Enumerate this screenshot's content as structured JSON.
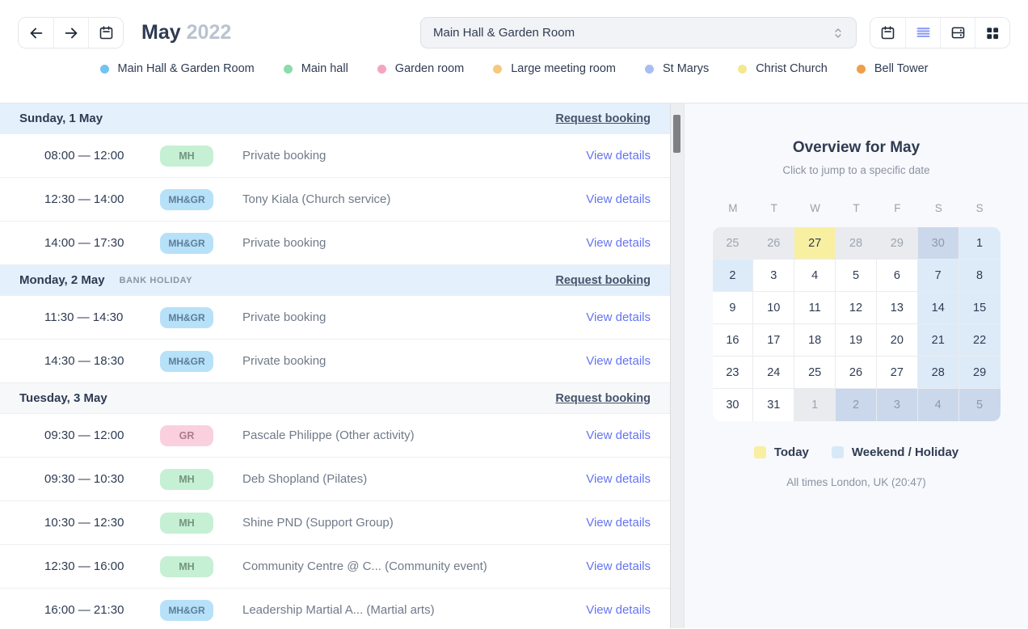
{
  "header": {
    "title_month": "May",
    "title_year": "2022",
    "room_select": {
      "value": "Main Hall & Garden Room"
    }
  },
  "legend": {
    "items": [
      {
        "label": "Main Hall & Garden Room",
        "color": "#73C3F0"
      },
      {
        "label": "Main hall",
        "color": "#8CDCA9"
      },
      {
        "label": "Garden room",
        "color": "#F4A6BF"
      },
      {
        "label": "Large meeting room",
        "color": "#F4CB7C"
      },
      {
        "label": "St Marys",
        "color": "#A9BDF2"
      },
      {
        "label": "Christ Church",
        "color": "#F4E88F"
      },
      {
        "label": "Bell Tower",
        "color": "#EF9F4B"
      }
    ]
  },
  "schedule": {
    "request_booking_label": "Request booking",
    "view_details_label": "View details",
    "days": [
      {
        "label": "Sunday, 1 May",
        "note": "",
        "holiday": true,
        "events": [
          {
            "time": "08:00 — 12:00",
            "badge": "MH",
            "badge_type": "mh",
            "title": "Private booking"
          },
          {
            "time": "12:30 — 14:00",
            "badge": "MH&GR",
            "badge_type": "mhgr",
            "title": "Tony Kiala (Church service)"
          },
          {
            "time": "14:00 — 17:30",
            "badge": "MH&GR",
            "badge_type": "mhgr",
            "title": "Private booking"
          }
        ]
      },
      {
        "label": "Monday, 2 May",
        "note": "BANK HOLIDAY",
        "holiday": true,
        "events": [
          {
            "time": "11:30 — 14:30",
            "badge": "MH&GR",
            "badge_type": "mhgr",
            "title": "Private booking"
          },
          {
            "time": "14:30 — 18:30",
            "badge": "MH&GR",
            "badge_type": "mhgr",
            "title": "Private booking"
          }
        ]
      },
      {
        "label": "Tuesday, 3 May",
        "note": "",
        "holiday": false,
        "events": [
          {
            "time": "09:30 — 12:00",
            "badge": "GR",
            "badge_type": "gr",
            "title": "Pascale Philippe (Other activity)"
          },
          {
            "time": "09:30 — 10:30",
            "badge": "MH",
            "badge_type": "mh",
            "title": "Deb Shopland (Pilates)"
          },
          {
            "time": "10:30 — 12:30",
            "badge": "MH",
            "badge_type": "mh",
            "title": "Shine PND (Support Group)"
          },
          {
            "time": "12:30 — 16:00",
            "badge": "MH",
            "badge_type": "mh",
            "title": "Community Centre @ C... (Community event)"
          },
          {
            "time": "16:00 — 21:30",
            "badge": "MH&GR",
            "badge_type": "mhgr",
            "title": "Leadership Martial A... (Martial arts)"
          }
        ]
      }
    ]
  },
  "overview": {
    "title": "Overview for May",
    "subtitle": "Click to jump to a specific date",
    "weekday_headers": [
      "M",
      "T",
      "W",
      "T",
      "F",
      "S",
      "S"
    ],
    "weeks": [
      [
        {
          "d": "25",
          "t": "out"
        },
        {
          "d": "26",
          "t": "out"
        },
        {
          "d": "27",
          "t": "today"
        },
        {
          "d": "28",
          "t": "out"
        },
        {
          "d": "29",
          "t": "out"
        },
        {
          "d": "30",
          "t": "out-we"
        },
        {
          "d": "1",
          "t": "we"
        }
      ],
      [
        {
          "d": "2",
          "t": "we"
        },
        {
          "d": "3",
          "t": ""
        },
        {
          "d": "4",
          "t": ""
        },
        {
          "d": "5",
          "t": ""
        },
        {
          "d": "6",
          "t": ""
        },
        {
          "d": "7",
          "t": "we"
        },
        {
          "d": "8",
          "t": "we"
        }
      ],
      [
        {
          "d": "9",
          "t": ""
        },
        {
          "d": "10",
          "t": ""
        },
        {
          "d": "11",
          "t": ""
        },
        {
          "d": "12",
          "t": ""
        },
        {
          "d": "13",
          "t": ""
        },
        {
          "d": "14",
          "t": "we"
        },
        {
          "d": "15",
          "t": "we"
        }
      ],
      [
        {
          "d": "16",
          "t": ""
        },
        {
          "d": "17",
          "t": ""
        },
        {
          "d": "18",
          "t": ""
        },
        {
          "d": "19",
          "t": ""
        },
        {
          "d": "20",
          "t": ""
        },
        {
          "d": "21",
          "t": "we"
        },
        {
          "d": "22",
          "t": "we"
        }
      ],
      [
        {
          "d": "23",
          "t": ""
        },
        {
          "d": "24",
          "t": ""
        },
        {
          "d": "25",
          "t": ""
        },
        {
          "d": "26",
          "t": ""
        },
        {
          "d": "27",
          "t": ""
        },
        {
          "d": "28",
          "t": "we"
        },
        {
          "d": "29",
          "t": "we"
        }
      ],
      [
        {
          "d": "30",
          "t": ""
        },
        {
          "d": "31",
          "t": ""
        },
        {
          "d": "1",
          "t": "out"
        },
        {
          "d": "2",
          "t": "out-we"
        },
        {
          "d": "3",
          "t": "out-we"
        },
        {
          "d": "4",
          "t": "out-we"
        },
        {
          "d": "5",
          "t": "out-we"
        }
      ]
    ],
    "legend": [
      {
        "label": "Today",
        "color": "#F8EFA1"
      },
      {
        "label": "Weekend / Holiday",
        "color": "#D7E9F8"
      }
    ],
    "timezone_note": "All times London, UK (20:47)"
  },
  "colors": {
    "accent_link": "#6474F2",
    "holiday_header_bg": "#E4F0FB",
    "badge_mh_bg": "#C5F0D4",
    "badge_mhgr_bg": "#B7E1F8",
    "badge_gr_bg": "#FAD0DE"
  }
}
